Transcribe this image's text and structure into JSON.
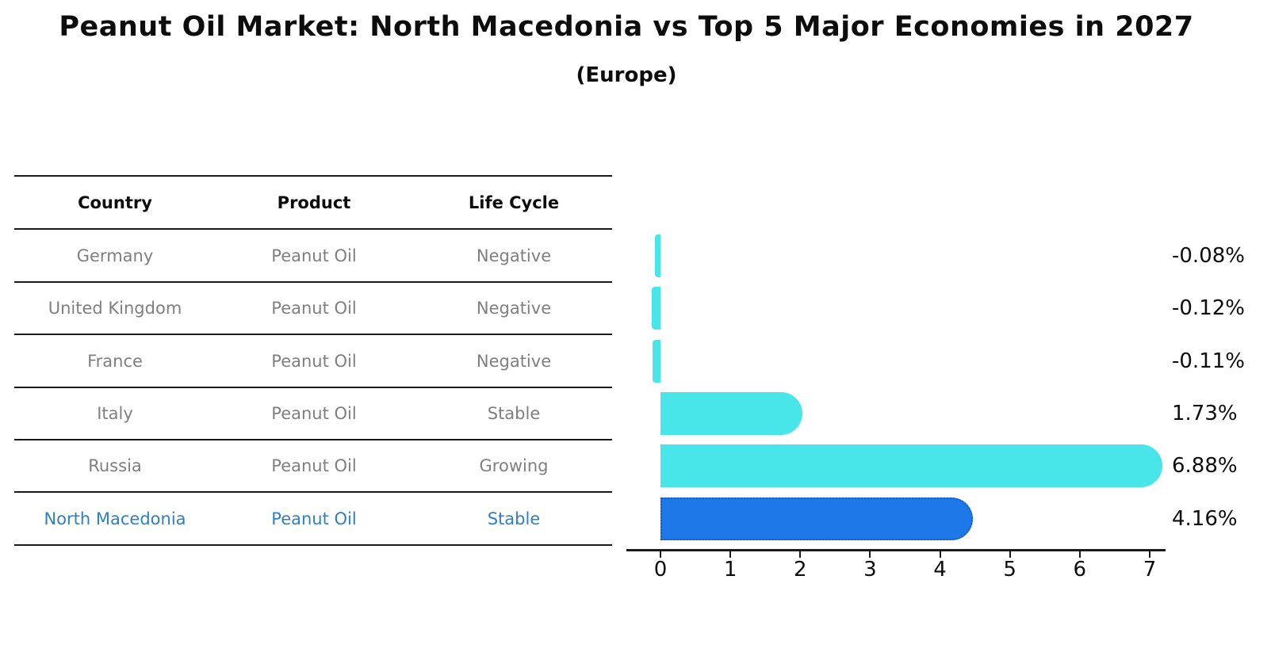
{
  "title": "Peanut Oil Market: North Macedonia vs Top 5 Major Economies in 2027",
  "subtitle": "(Europe)",
  "table": {
    "headers": [
      "Country",
      "Product",
      "Life Cycle"
    ],
    "rows": [
      {
        "country": "Germany",
        "product": "Peanut Oil",
        "life_cycle": "Negative",
        "highlight": false
      },
      {
        "country": "United Kingdom",
        "product": "Peanut Oil",
        "life_cycle": "Negative",
        "highlight": false
      },
      {
        "country": "France",
        "product": "Peanut Oil",
        "life_cycle": "Negative",
        "highlight": false
      },
      {
        "country": "Italy",
        "product": "Peanut Oil",
        "life_cycle": "Stable",
        "highlight": false
      },
      {
        "country": "Russia",
        "product": "Peanut Oil",
        "life_cycle": "Growing",
        "highlight": false
      },
      {
        "country": "North Macedonia",
        "product": "Peanut Oil",
        "life_cycle": "Stable",
        "highlight": true
      }
    ]
  },
  "chart_data": {
    "type": "bar",
    "orientation": "horizontal",
    "title": "Peanut Oil Market: North Macedonia vs Top 5 Major Economies in 2027 (Europe)",
    "categories": [
      "Germany",
      "United Kingdom",
      "France",
      "Italy",
      "Russia",
      "North Macedonia"
    ],
    "values": [
      -0.08,
      -0.12,
      -0.11,
      1.73,
      6.88,
      4.16
    ],
    "value_labels": [
      "-0.08%",
      "-0.12%",
      "-0.11%",
      "1.73%",
      "6.88%",
      "4.16%"
    ],
    "x_ticks": [
      "0",
      "1",
      "2",
      "3",
      "4",
      "5",
      "6",
      "7"
    ],
    "xlim": [
      -0.5,
      7.25
    ],
    "grid": false,
    "legend": false,
    "highlight_index": 5,
    "bar_color": "#48e6e8",
    "highlight_color": "#1e78e8",
    "highlight_border_color": "#0f5ccc",
    "highlight_text_color": "#2e80c4",
    "row_text_color": "#7f7f7f",
    "axis_color": "#1a1a1a"
  }
}
